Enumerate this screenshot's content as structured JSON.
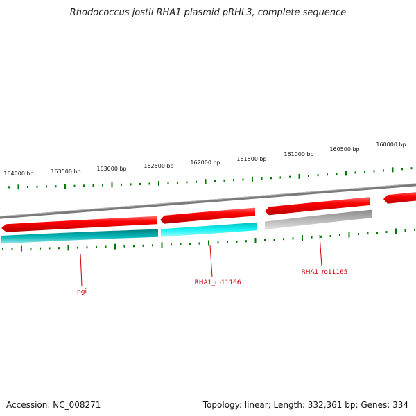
{
  "title": "Rhodococcus jostii RHA1 plasmid pRHL3, complete sequence",
  "accession_text": "Accession: NC_008271",
  "summary_text": "Topology: linear; Length: 332,361 bp; Genes: 334",
  "colors": {
    "forward_cds": "#ff0000",
    "reverse_cds": "#00e5e5",
    "pseudo": "#b0b0b0",
    "backbone": "#777777",
    "ticks": "#007700",
    "label": "#cc0000"
  },
  "scale_ticks": [
    "164000 bp",
    "163500 bp",
    "163000 bp",
    "162500 bp",
    "162000 bp",
    "161500 bp",
    "161000 bp",
    "160500 bp",
    "160000 bp"
  ],
  "gene_labels": [
    "pgi",
    "RHA1_ro11166",
    "RHA1_ro11165"
  ],
  "features": [
    {
      "name": "forward-cds-1",
      "strand": "forward",
      "type": "cds"
    },
    {
      "name": "forward-cds-2",
      "strand": "forward",
      "type": "cds"
    },
    {
      "name": "forward-cds-3",
      "strand": "forward",
      "type": "cds"
    },
    {
      "name": "forward-cds-4",
      "strand": "forward",
      "type": "cds"
    },
    {
      "name": "pgi",
      "strand": "reverse",
      "type": "cds"
    },
    {
      "name": "RHA1_ro11166",
      "strand": "reverse",
      "type": "cds"
    },
    {
      "name": "RHA1_ro11165",
      "strand": "reverse",
      "type": "pseudo"
    }
  ]
}
